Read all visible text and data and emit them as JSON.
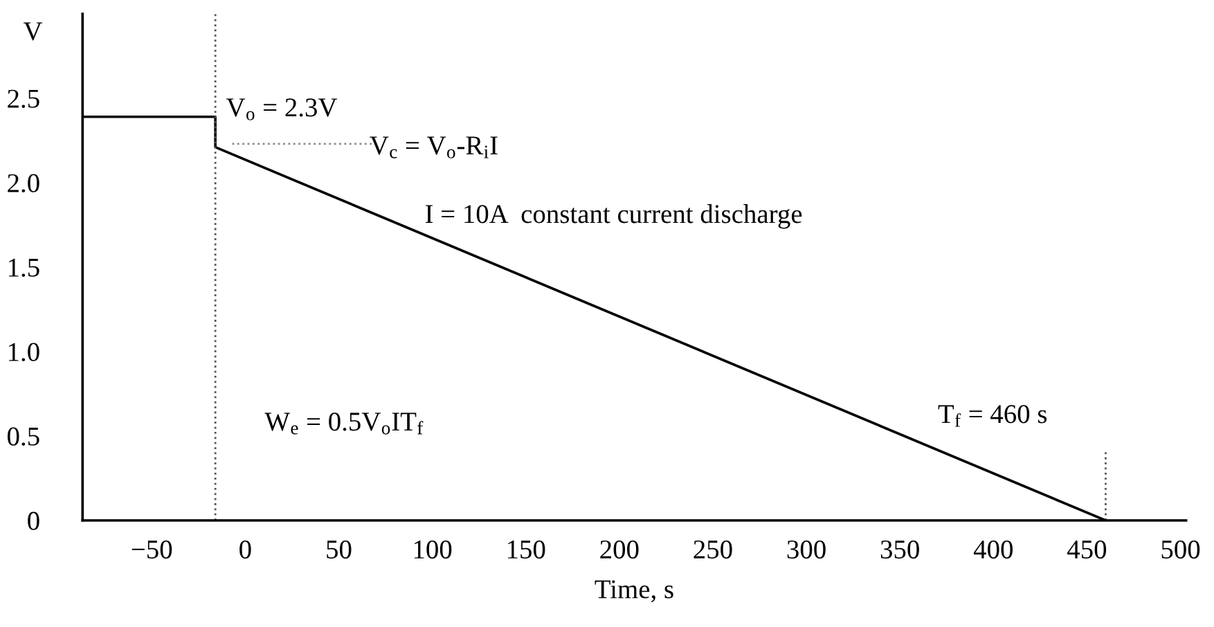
{
  "chart_data": {
    "type": "line",
    "ylabel": "V",
    "xlabel": "Time, s",
    "series": [
      {
        "color": "#000000",
        "x": [
          -87,
          -16,
          -16,
          460
        ],
        "values": [
          2.39,
          2.39,
          2.21,
          0
        ],
        "line_style": "solid"
      },
      {
        "color": "#888888",
        "x": [
          -7,
          72
        ],
        "values": [
          2.23,
          2.23
        ],
        "line_style": "dotted"
      },
      {
        "color": "#555555",
        "x": [
          460,
          460
        ],
        "values": [
          0,
          0.42
        ],
        "line_style": "dotted"
      }
    ],
    "ref_lines": [
      {
        "axis": "x",
        "value": -16,
        "color": "#555555",
        "line_style": "dotted"
      }
    ],
    "annotations": [
      "V$_{o}$ = 2.3V",
      "V$_{c}$ = V$_{o}$-R$_{i}$I",
      "I = 10A  constant current discharge",
      "W$_{e}$ = 0.5V$_{o}$IT$_{f}$",
      "T$_{f}$ = 460 s"
    ],
    "xlim": [
      -87,
      503
    ],
    "ylim": [
      0,
      3.0
    ],
    "xticks": [
      -50,
      0,
      50,
      100,
      150,
      200,
      250,
      300,
      350,
      400,
      450,
      500
    ],
    "yticks": [
      0,
      0.5,
      {
        "value": 1.0,
        "label": "1.0"
      },
      1.5,
      {
        "value": 2.0,
        "label": "2.0"
      },
      2.5
    ],
    "grid": false,
    "legend": false,
    "marker": "none"
  }
}
